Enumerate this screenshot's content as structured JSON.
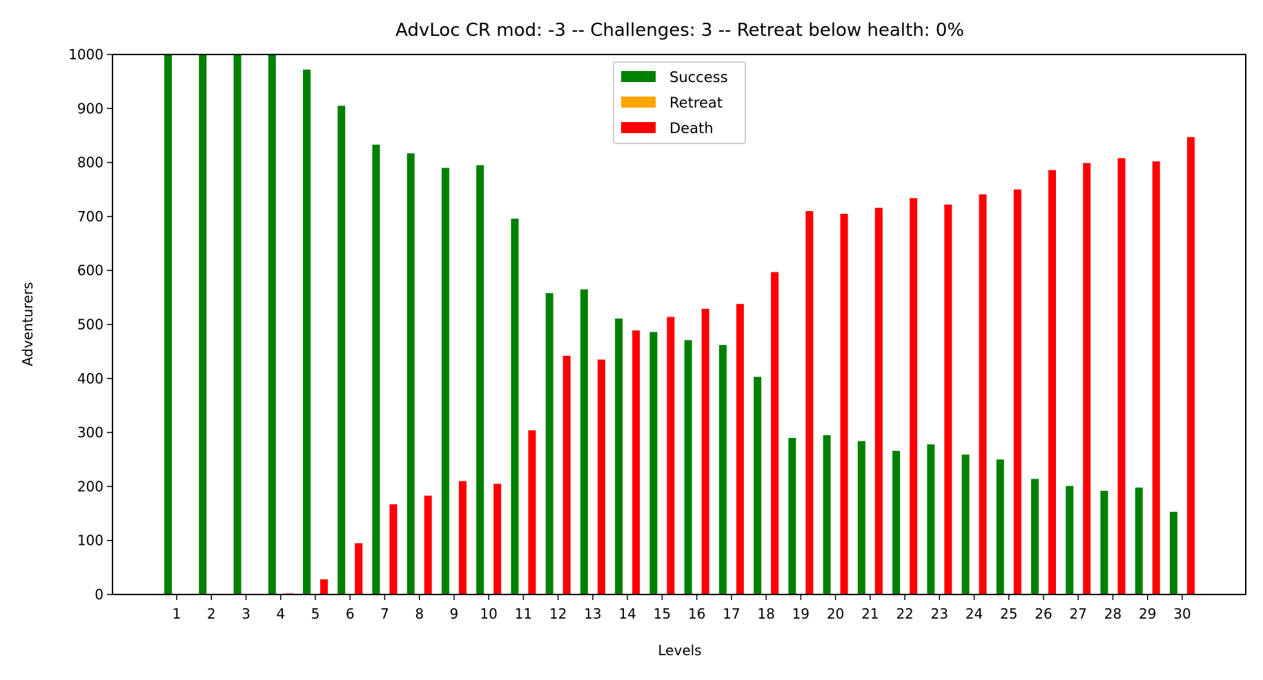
{
  "chart_data": {
    "type": "bar",
    "title": "AdvLoc CR mod: -3 -- Challenges: 3 -- Retreat below health: 0%",
    "xlabel": "Levels",
    "ylabel": "Adventurers",
    "ylim": [
      0,
      1000
    ],
    "yticks": [
      "0",
      "100",
      "200",
      "300",
      "400",
      "500",
      "600",
      "700",
      "800",
      "900",
      "1000"
    ],
    "categories": [
      "1",
      "2",
      "3",
      "4",
      "5",
      "6",
      "7",
      "8",
      "9",
      "10",
      "11",
      "12",
      "13",
      "14",
      "15",
      "16",
      "17",
      "18",
      "19",
      "20",
      "21",
      "22",
      "23",
      "24",
      "25",
      "26",
      "27",
      "28",
      "29",
      "30"
    ],
    "grid": false,
    "legend_position": "upper center",
    "series": [
      {
        "name": "Success",
        "color": "#008000",
        "values": [
          1000,
          1000,
          1000,
          1000,
          972,
          905,
          833,
          817,
          790,
          795,
          696,
          558,
          565,
          511,
          486,
          471,
          462,
          403,
          290,
          295,
          284,
          266,
          278,
          259,
          250,
          214,
          201,
          192,
          198,
          153
        ]
      },
      {
        "name": "Retreat",
        "color": "#FFA500",
        "values": [
          0,
          0,
          0,
          0,
          0,
          0,
          0,
          0,
          0,
          0,
          0,
          0,
          0,
          0,
          0,
          0,
          0,
          0,
          0,
          0,
          0,
          0,
          0,
          0,
          0,
          0,
          0,
          0,
          0,
          0
        ]
      },
      {
        "name": "Death",
        "color": "#FF0000",
        "values": [
          0,
          0,
          0,
          2,
          28,
          95,
          167,
          183,
          210,
          205,
          304,
          442,
          435,
          489,
          514,
          529,
          538,
          597,
          710,
          705,
          716,
          734,
          722,
          741,
          750,
          786,
          799,
          808,
          802,
          847
        ]
      }
    ]
  }
}
